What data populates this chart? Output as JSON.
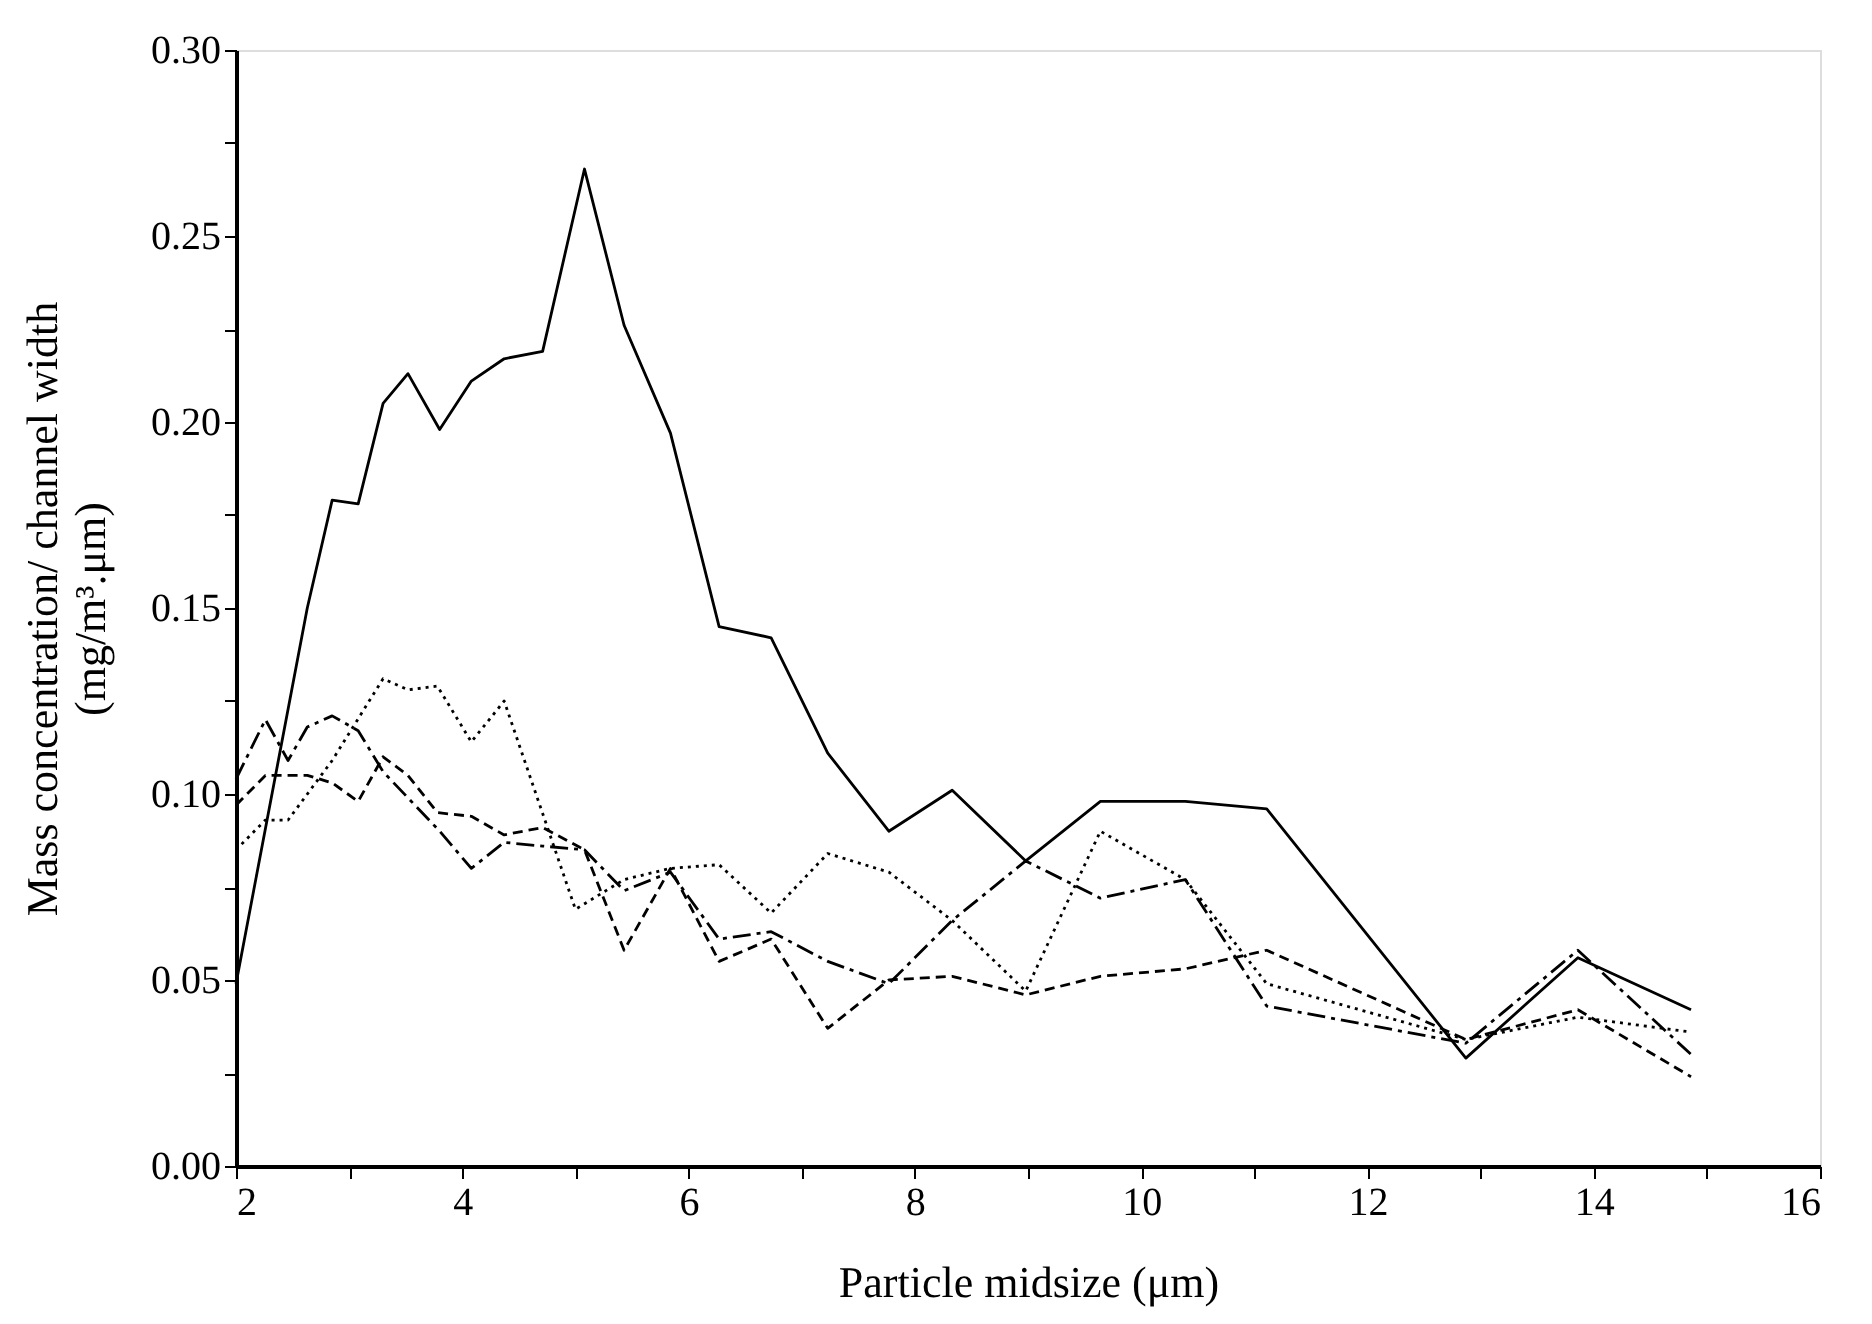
{
  "chart_data": {
    "type": "line",
    "xlabel": "Particle midsize (μm)",
    "ylabel": "Mass concentration/ channel width\n(mg/m³.μm)",
    "xlim": [
      2,
      16
    ],
    "ylim": [
      0,
      0.3
    ],
    "xticks": [
      2,
      {
        "value": 3,
        "label": null
      },
      4,
      {
        "value": 5,
        "label": null
      },
      6,
      {
        "value": 7,
        "label": null
      },
      8,
      {
        "value": 9,
        "label": null
      },
      10,
      {
        "value": 11,
        "label": null
      },
      12,
      {
        "value": 13,
        "label": null
      },
      14,
      {
        "value": 15,
        "label": null
      },
      16
    ],
    "yticks": [
      {
        "value": 0,
        "label": "0.00"
      },
      {
        "value": 0.025,
        "label": null
      },
      {
        "value": 0.05,
        "label": "0.05"
      },
      {
        "value": 0.075,
        "label": null
      },
      {
        "value": 0.1,
        "label": "0.10"
      },
      {
        "value": 0.125,
        "label": null
      },
      {
        "value": 0.15,
        "label": "0.15"
      },
      {
        "value": 0.175,
        "label": null
      },
      {
        "value": 0.2,
        "label": "0.20"
      },
      {
        "value": 0.225,
        "label": null
      },
      {
        "value": 0.25,
        "label": "0.25"
      },
      {
        "value": 0.275,
        "label": null
      },
      {
        "value": 0.3,
        "label": "0.30"
      }
    ],
    "grid": false,
    "legend": false,
    "marker": "none",
    "series": [
      {
        "color": "#000000",
        "line_style": "solid",
        "x": [
          2.0,
          2.63,
          2.85,
          3.08,
          3.3,
          3.52,
          3.8,
          4.08,
          4.37,
          4.71,
          5.08,
          5.43,
          5.84,
          6.27,
          6.73,
          7.23,
          7.77,
          8.33,
          8.98,
          9.64,
          10.39,
          11.11,
          12.87,
          13.86,
          14.86
        ],
        "values": [
          0.049,
          0.15,
          0.179,
          0.178,
          0.205,
          0.213,
          0.198,
          0.211,
          0.217,
          0.219,
          0.268,
          0.226,
          0.197,
          0.145,
          0.142,
          0.111,
          0.09,
          0.101,
          0.082,
          0.098,
          0.098,
          0.096,
          0.029,
          0.056,
          0.042
        ]
      },
      {
        "color": "#000000",
        "line_style": "dotted",
        "x": [
          2.0,
          2.26,
          2.46,
          2.85,
          3.3,
          3.52,
          3.78,
          4.08,
          4.37,
          5.0,
          5.43,
          5.84,
          6.27,
          6.73,
          7.23,
          7.77,
          8.33,
          8.98,
          9.64,
          10.39,
          11.11,
          12.87,
          13.86,
          14.86
        ],
        "values": [
          0.085,
          0.093,
          0.093,
          0.109,
          0.131,
          0.128,
          0.129,
          0.114,
          0.125,
          0.069,
          0.077,
          0.08,
          0.081,
          0.068,
          0.084,
          0.079,
          0.066,
          0.047,
          0.09,
          0.077,
          0.049,
          0.034,
          0.04,
          0.036
        ]
      },
      {
        "color": "#000000",
        "line_style": "dashed",
        "x": [
          2.0,
          2.26,
          2.63,
          2.85,
          3.08,
          3.3,
          3.52,
          3.78,
          4.08,
          4.37,
          4.71,
          5.08,
          5.43,
          5.84,
          6.27,
          6.73,
          7.23,
          7.77,
          8.33,
          8.98,
          9.64,
          10.39,
          11.11,
          12.87,
          13.86,
          14.86
        ],
        "values": [
          0.097,
          0.105,
          0.105,
          0.103,
          0.098,
          0.11,
          0.105,
          0.095,
          0.094,
          0.089,
          0.091,
          0.085,
          0.058,
          0.08,
          0.055,
          0.061,
          0.037,
          0.05,
          0.051,
          0.046,
          0.051,
          0.053,
          0.058,
          0.034,
          0.042,
          0.024
        ]
      },
      {
        "color": "#000000",
        "line_style": "dashdot",
        "x": [
          2.0,
          2.26,
          2.46,
          2.63,
          2.85,
          3.08,
          3.3,
          3.8,
          4.08,
          4.37,
          4.71,
          5.08,
          5.43,
          5.84,
          6.27,
          6.73,
          7.23,
          7.77,
          8.33,
          8.98,
          9.64,
          10.39,
          11.11,
          12.87,
          13.86,
          14.86
        ],
        "values": [
          0.104,
          0.12,
          0.109,
          0.118,
          0.121,
          0.117,
          0.106,
          0.09,
          0.08,
          0.087,
          0.086,
          0.085,
          0.074,
          0.079,
          0.061,
          0.063,
          0.055,
          0.049,
          0.066,
          0.082,
          0.072,
          0.077,
          0.043,
          0.033,
          0.058,
          0.03
        ]
      }
    ]
  }
}
